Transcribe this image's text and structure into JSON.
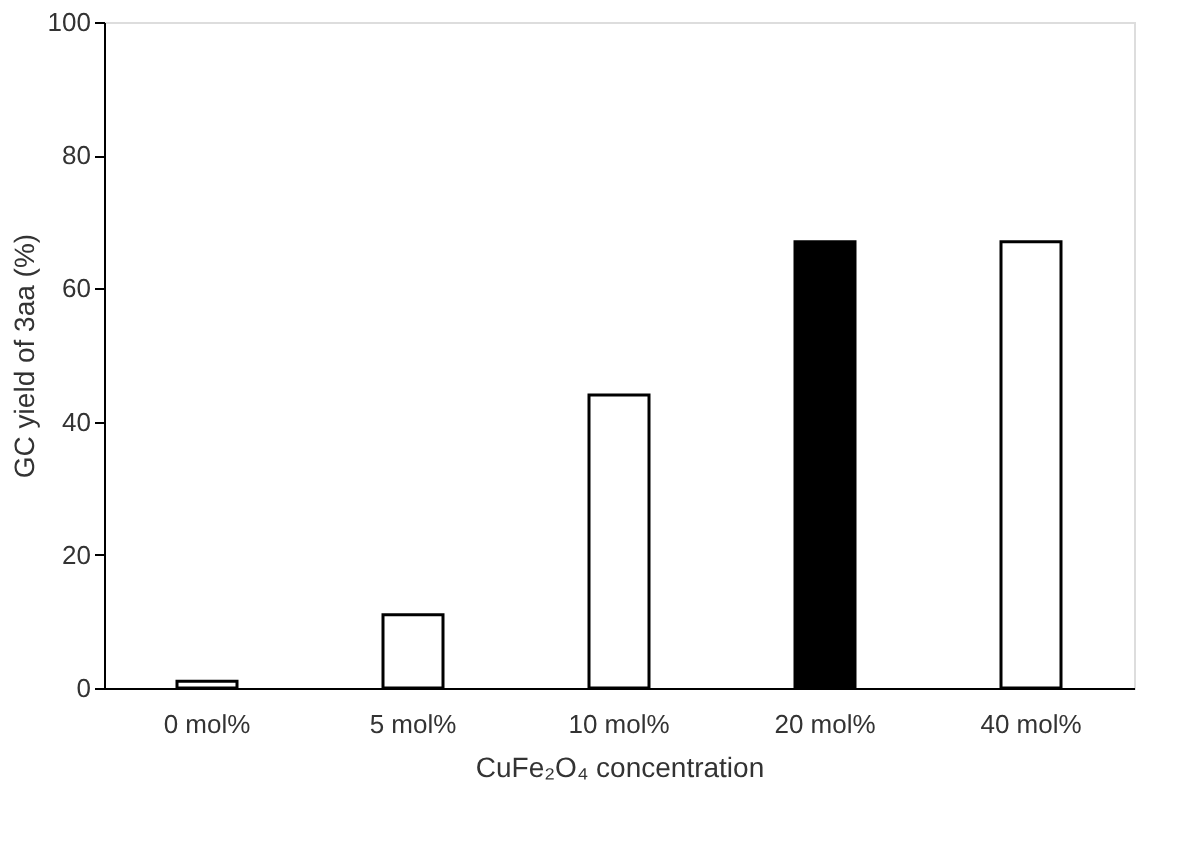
{
  "chart_data": {
    "type": "bar",
    "xlabel": "CuFe₂O₄ concentration",
    "ylabel": "GC yield of 3aa (%)",
    "categories": [
      "0 mol%",
      "5 mol%",
      "10 mol%",
      "20 mol%",
      "40 mol%"
    ],
    "values": [
      1,
      11,
      44,
      67,
      67
    ],
    "colors": [
      "#ffffff",
      "#ffffff",
      "#ffffff",
      "#000000",
      "#ffffff"
    ],
    "ylim": [
      0,
      100
    ],
    "yticks": [
      0,
      20,
      40,
      60,
      80,
      100
    ],
    "grid": false
  }
}
